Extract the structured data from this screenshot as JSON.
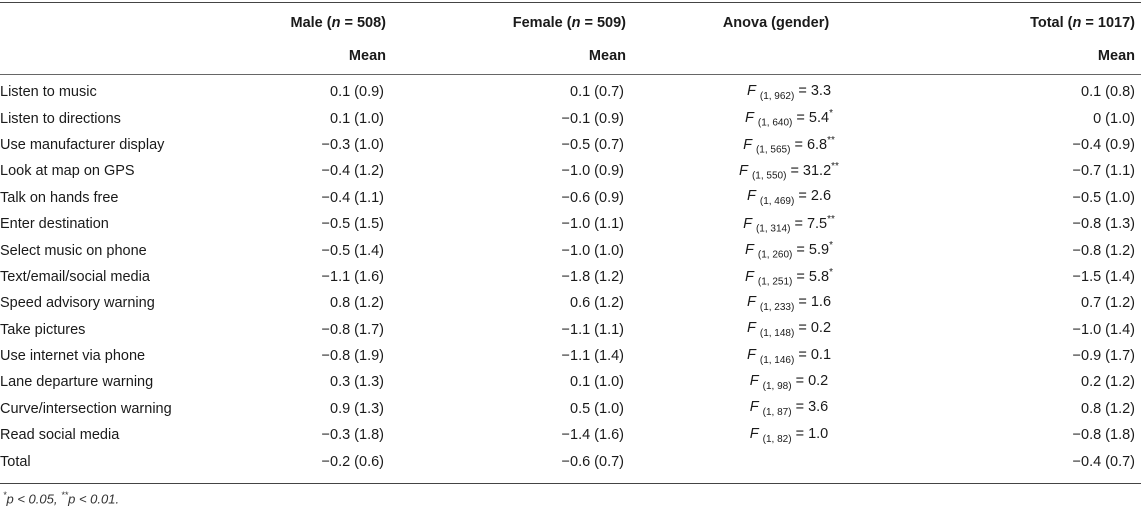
{
  "table": {
    "header": {
      "male": "Male (n = 508)",
      "female": "Female (n = 509)",
      "anova": "Anova (gender)",
      "total": "Total (n = 1017)",
      "sub_male": "Mean",
      "sub_female": "Mean",
      "sub_total": "Mean"
    },
    "rows": [
      {
        "label": "Listen to music",
        "male": "0.1 (0.9)",
        "female": "0.1 (0.7)",
        "anova": "F (1, 962) = 3.3",
        "total": "0.1 (0.8)"
      },
      {
        "label": "Listen to directions",
        "male": "0.1 (1.0)",
        "female": "−0.1 (0.9)",
        "anova": "F (1, 640) = 5.4*",
        "total": "0 (1.0)"
      },
      {
        "label": "Use manufacturer display",
        "male": "−0.3 (1.0)",
        "female": "−0.5 (0.7)",
        "anova": "F (1, 565) = 6.8**",
        "total": "−0.4 (0.9)"
      },
      {
        "label": "Look at map on GPS",
        "male": "−0.4 (1.2)",
        "female": "−1.0 (0.9)",
        "anova": "F (1, 550) = 31.2**",
        "total": "−0.7 (1.1)"
      },
      {
        "label": "Talk on hands free",
        "male": "−0.4 (1.1)",
        "female": "−0.6 (0.9)",
        "anova": "F (1, 469) = 2.6",
        "total": "−0.5 (1.0)"
      },
      {
        "label": "Enter destination",
        "male": "−0.5 (1.5)",
        "female": "−1.0 (1.1)",
        "anova": "F (1, 314) = 7.5**",
        "total": "−0.8 (1.3)"
      },
      {
        "label": "Select music on phone",
        "male": "−0.5 (1.4)",
        "female": "−1.0 (1.0)",
        "anova": "F (1, 260) = 5.9*",
        "total": "−0.8 (1.2)"
      },
      {
        "label": "Text/email/social media",
        "male": "−1.1 (1.6)",
        "female": "−1.8 (1.2)",
        "anova": "F (1, 251) = 5.8*",
        "total": "−1.5 (1.4)"
      },
      {
        "label": "Speed advisory warning",
        "male": "0.8 (1.2)",
        "female": "0.6 (1.2)",
        "anova": "F (1, 233) = 1.6",
        "total": "0.7 (1.2)"
      },
      {
        "label": "Take pictures",
        "male": "−0.8 (1.7)",
        "female": "−1.1 (1.1)",
        "anova": "F (1, 148) = 0.2",
        "total": "−1.0 (1.4)"
      },
      {
        "label": "Use internet via phone",
        "male": "−0.8 (1.9)",
        "female": "−1.1 (1.4)",
        "anova": "F (1, 146) = 0.1",
        "total": "−0.9 (1.7)"
      },
      {
        "label": "Lane departure warning",
        "male": "0.3 (1.3)",
        "female": "0.1 (1.0)",
        "anova": "F (1, 98) = 0.2",
        "total": "0.2 (1.2)"
      },
      {
        "label": "Curve/intersection warning",
        "male": "0.9 (1.3)",
        "female": "0.5 (1.0)",
        "anova": "F (1, 87) = 3.6",
        "total": "0.8 (1.2)"
      },
      {
        "label": "Read social media",
        "male": "−0.3 (1.8)",
        "female": "−1.4 (1.6)",
        "anova": "F (1, 82) = 1.0",
        "total": "−0.8 (1.8)"
      },
      {
        "label": "Total",
        "male": "−0.2 (0.6)",
        "female": "−0.6 (0.7)",
        "anova": "",
        "total": "−0.4 (0.7)"
      }
    ]
  },
  "footnote": "*p < 0.05, **p < 0.01."
}
